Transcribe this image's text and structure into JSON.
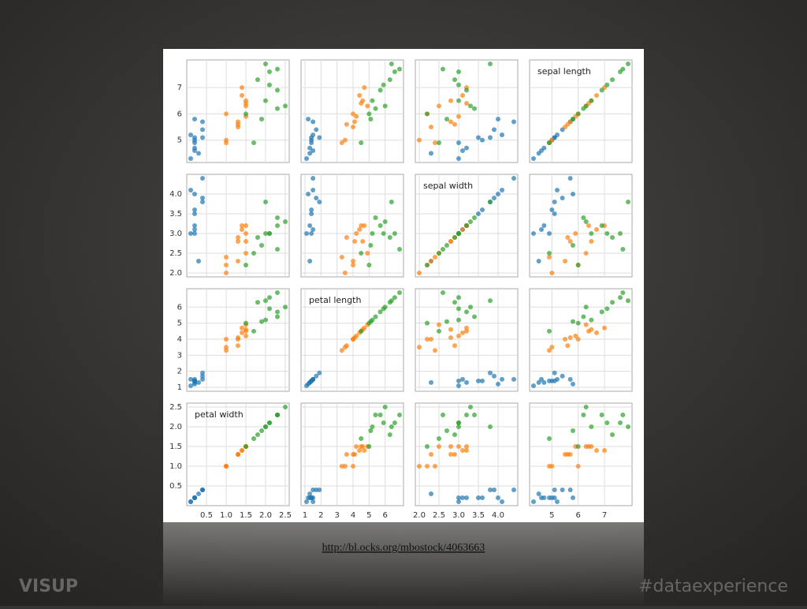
{
  "slide": {
    "url": "http://bl.ocks.org/mbostock/4063663",
    "brand": "VISUP",
    "hashtag": "#dataexperience"
  },
  "chart_data": {
    "type": "scatter_matrix",
    "variables": [
      {
        "label": "sepal length",
        "lim": [
          4.3,
          7.9
        ],
        "ticks": [
          5,
          6,
          7
        ]
      },
      {
        "label": "sepal width",
        "lim": [
          2.0,
          4.4
        ],
        "ticks": [
          {
            "value": 2.0,
            "label": "2.0"
          },
          2.5,
          {
            "value": 3.0,
            "label": "3.0"
          },
          3.5,
          {
            "value": 4.0,
            "label": "4.0"
          }
        ]
      },
      {
        "label": "petal length",
        "lim": [
          1,
          6.9
        ],
        "ticks": [
          1,
          2,
          3,
          4,
          5,
          6
        ]
      },
      {
        "label": "petal width",
        "lim": [
          0.1,
          2.5
        ],
        "ticks": [
          0.5,
          {
            "value": 1.0,
            "label": "1.0"
          },
          1.5,
          {
            "value": 2.0,
            "label": "2.0"
          },
          2.5
        ]
      }
    ],
    "series": [
      {
        "color": "#1f77b4",
        "values": [
          [
            5.1,
            4.9,
            4.7,
            4.6,
            5.0,
            5.4,
            4.3,
            5.8,
            5.7,
            5.2,
            4.5,
            5.1
          ],
          [
            3.5,
            3.0,
            3.2,
            3.1,
            3.6,
            3.9,
            3.0,
            4.0,
            4.4,
            4.1,
            2.3,
            3.8
          ],
          [
            1.4,
            1.4,
            1.3,
            1.5,
            1.4,
            1.7,
            1.1,
            1.2,
            1.5,
            1.5,
            1.3,
            1.9
          ],
          [
            0.2,
            0.2,
            0.2,
            0.2,
            0.2,
            0.4,
            0.1,
            0.2,
            0.4,
            0.1,
            0.3,
            0.4
          ]
        ]
      },
      {
        "color": "#ff7f0e",
        "values": [
          [
            7.0,
            6.4,
            5.5,
            6.5,
            5.0,
            5.9,
            6.0,
            5.6,
            6.7,
            4.9,
            6.3,
            5.7
          ],
          [
            3.2,
            3.2,
            2.3,
            2.8,
            2.0,
            3.0,
            2.2,
            2.9,
            3.1,
            2.4,
            2.5,
            2.8
          ],
          [
            4.7,
            4.5,
            4.0,
            4.6,
            3.5,
            4.2,
            4.0,
            3.6,
            4.4,
            3.3,
            4.9,
            4.1
          ],
          [
            1.4,
            1.5,
            1.3,
            1.5,
            1.0,
            1.5,
            1.0,
            1.3,
            1.4,
            1.0,
            1.5,
            1.3
          ]
        ]
      },
      {
        "color": "#2ca02c",
        "values": [
          [
            6.3,
            5.8,
            7.1,
            7.6,
            4.9,
            7.3,
            7.9,
            7.7,
            6.0,
            6.9,
            6.5,
            6.2
          ],
          [
            3.3,
            2.7,
            3.0,
            3.0,
            2.5,
            2.9,
            3.8,
            2.6,
            2.2,
            3.2,
            3.0,
            3.4
          ],
          [
            6.0,
            5.1,
            5.9,
            6.6,
            4.5,
            6.3,
            6.4,
            6.9,
            5.0,
            5.7,
            5.2,
            5.4
          ],
          [
            2.5,
            1.9,
            2.1,
            2.1,
            1.7,
            1.8,
            2.0,
            2.3,
            1.5,
            2.3,
            2.0,
            2.3
          ]
        ]
      }
    ]
  }
}
